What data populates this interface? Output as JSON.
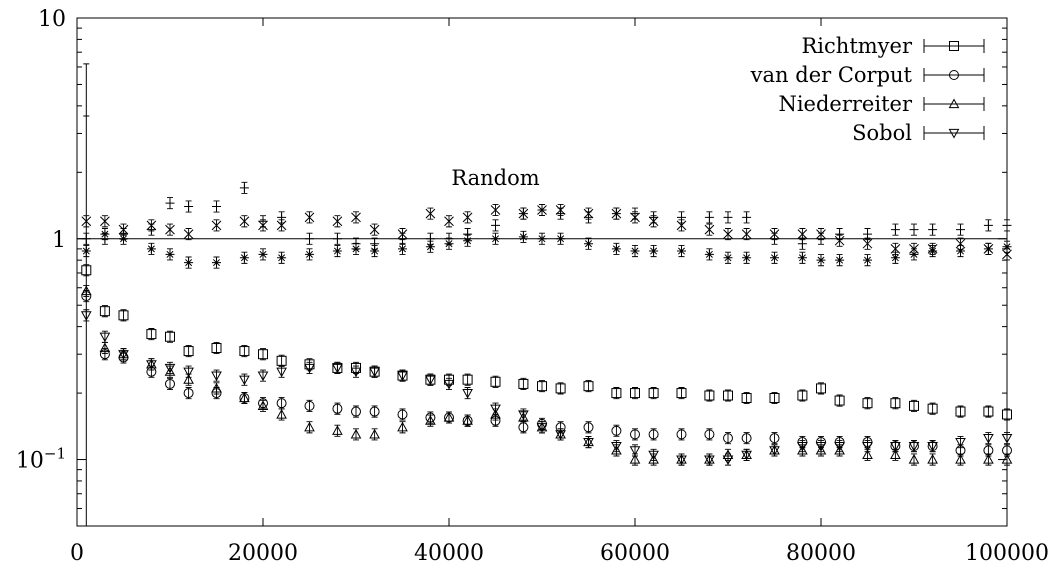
{
  "chart_data": {
    "type": "scatter",
    "xlabel": "",
    "ylabel": "",
    "xlim": [
      0,
      100000
    ],
    "ylim": [
      0.05,
      10
    ],
    "yscale": "log",
    "grid": false,
    "legend_position": "top-right",
    "x_ticks": [
      0,
      20000,
      40000,
      60000,
      80000,
      100000
    ],
    "x_tick_labels": [
      "0",
      "20000",
      "40000",
      "60000",
      "80000",
      "100000"
    ],
    "y_ticks": [
      0.1,
      1,
      10
    ],
    "y_tick_labels": [
      {
        "base": "10",
        "exp": "−1"
      },
      {
        "base": "1",
        "exp": ""
      },
      {
        "base": "10",
        "exp": ""
      }
    ],
    "reference_line": {
      "y": 1
    },
    "annotation": {
      "text": "Random",
      "x": 45000,
      "y": 1.75
    },
    "series": [
      {
        "name": "Richtmyer",
        "marker": "square",
        "in_legend": true,
        "error_bars": true,
        "x": [
          1000,
          3000,
          5000,
          8000,
          10000,
          12000,
          15000,
          18000,
          20000,
          22000,
          25000,
          28000,
          30000,
          32000,
          35000,
          38000,
          40000,
          42000,
          45000,
          48000,
          50000,
          52000,
          55000,
          58000,
          60000,
          62000,
          65000,
          68000,
          70000,
          72000,
          75000,
          78000,
          80000,
          82000,
          85000,
          88000,
          90000,
          92000,
          95000,
          98000,
          100000
        ],
        "y": [
          0.72,
          0.47,
          0.45,
          0.37,
          0.36,
          0.31,
          0.32,
          0.31,
          0.3,
          0.28,
          0.27,
          0.26,
          0.26,
          0.25,
          0.24,
          0.23,
          0.23,
          0.23,
          0.225,
          0.22,
          0.215,
          0.21,
          0.215,
          0.2,
          0.2,
          0.2,
          0.2,
          0.195,
          0.195,
          0.19,
          0.19,
          0.195,
          0.21,
          0.185,
          0.18,
          0.18,
          0.175,
          0.17,
          0.165,
          0.165,
          0.16
        ]
      },
      {
        "name": "van der Corput",
        "marker": "circle",
        "in_legend": true,
        "error_bars": true,
        "x": [
          1000,
          3000,
          5000,
          8000,
          10000,
          12000,
          15000,
          18000,
          20000,
          22000,
          25000,
          28000,
          30000,
          32000,
          35000,
          38000,
          40000,
          42000,
          45000,
          48000,
          50000,
          52000,
          55000,
          58000,
          60000,
          62000,
          65000,
          68000,
          70000,
          72000,
          75000,
          78000,
          80000,
          82000,
          85000,
          88000,
          90000,
          92000,
          95000,
          98000,
          100000
        ],
        "y": [
          0.55,
          0.3,
          0.29,
          0.25,
          0.22,
          0.2,
          0.2,
          0.19,
          0.18,
          0.18,
          0.175,
          0.17,
          0.165,
          0.165,
          0.16,
          0.155,
          0.155,
          0.15,
          0.15,
          0.14,
          0.145,
          0.14,
          0.14,
          0.135,
          0.13,
          0.13,
          0.13,
          0.13,
          0.125,
          0.125,
          0.125,
          0.12,
          0.12,
          0.12,
          0.12,
          0.115,
          0.115,
          0.115,
          0.11,
          0.11,
          0.11
        ]
      },
      {
        "name": "Niederreiter",
        "marker": "triangle-up",
        "in_legend": true,
        "error_bars": true,
        "x": [
          1000,
          3000,
          5000,
          8000,
          10000,
          12000,
          15000,
          18000,
          20000,
          22000,
          25000,
          28000,
          30000,
          32000,
          35000,
          38000,
          40000,
          42000,
          45000,
          48000,
          50000,
          52000,
          55000,
          58000,
          60000,
          62000,
          65000,
          68000,
          70000,
          72000,
          75000,
          78000,
          80000,
          82000,
          85000,
          88000,
          90000,
          92000,
          95000,
          98000,
          100000
        ],
        "y": [
          0.58,
          0.32,
          0.3,
          0.27,
          0.25,
          0.23,
          0.21,
          0.19,
          0.175,
          0.16,
          0.14,
          0.135,
          0.13,
          0.13,
          0.14,
          0.15,
          0.155,
          0.15,
          0.16,
          0.155,
          0.14,
          0.13,
          0.12,
          0.11,
          0.1,
          0.1,
          0.1,
          0.1,
          0.105,
          0.105,
          0.11,
          0.11,
          0.11,
          0.11,
          0.105,
          0.105,
          0.1,
          0.1,
          0.1,
          0.1,
          0.1
        ]
      },
      {
        "name": "Sobol",
        "marker": "triangle-down",
        "in_legend": true,
        "error_bars": true,
        "x": [
          1000,
          3000,
          5000,
          8000,
          10000,
          12000,
          15000,
          18000,
          20000,
          22000,
          25000,
          28000,
          30000,
          32000,
          35000,
          38000,
          40000,
          42000,
          45000,
          48000,
          50000,
          52000,
          55000,
          58000,
          60000,
          62000,
          65000,
          68000,
          70000,
          72000,
          75000,
          78000,
          80000,
          82000,
          85000,
          88000,
          90000,
          92000,
          95000,
          98000,
          100000
        ],
        "y": [
          0.45,
          0.36,
          0.3,
          0.27,
          0.26,
          0.25,
          0.24,
          0.23,
          0.24,
          0.25,
          0.26,
          0.26,
          0.25,
          0.25,
          0.24,
          0.23,
          0.22,
          0.2,
          0.17,
          0.16,
          0.14,
          0.13,
          0.12,
          0.115,
          0.11,
          0.105,
          0.1,
          0.1,
          0.1,
          0.105,
          0.11,
          0.115,
          0.115,
          0.115,
          0.115,
          0.115,
          0.115,
          0.115,
          0.12,
          0.125,
          0.125
        ]
      },
      {
        "name": "",
        "marker": "plus",
        "in_legend": false,
        "error_bars": true,
        "x": [
          1000,
          3000,
          5000,
          8000,
          10000,
          12000,
          15000,
          18000,
          20000,
          22000,
          25000,
          28000,
          30000,
          32000,
          35000,
          38000,
          40000,
          42000,
          45000,
          48000,
          50000,
          52000,
          55000,
          58000,
          60000,
          62000,
          65000,
          68000,
          70000,
          72000,
          75000,
          78000,
          80000,
          82000,
          85000,
          88000,
          90000,
          92000,
          95000,
          98000,
          100000
        ],
        "y": [
          1.0,
          1.0,
          1.05,
          1.1,
          1.45,
          1.4,
          1.4,
          1.7,
          1.2,
          1.25,
          1.0,
          1.0,
          0.95,
          0.95,
          1.0,
          1.0,
          1.0,
          1.05,
          1.15,
          1.3,
          1.35,
          1.3,
          1.25,
          1.3,
          1.3,
          1.25,
          1.25,
          1.25,
          1.25,
          1.25,
          1.0,
          0.95,
          1.0,
          1.05,
          1.05,
          1.1,
          1.1,
          1.1,
          1.1,
          1.15,
          1.15
        ]
      },
      {
        "name": "",
        "marker": "x-cross",
        "in_legend": false,
        "error_bars": true,
        "x": [
          1000,
          3000,
          5000,
          8000,
          10000,
          12000,
          15000,
          18000,
          20000,
          22000,
          25000,
          28000,
          30000,
          32000,
          35000,
          38000,
          40000,
          42000,
          45000,
          48000,
          50000,
          52000,
          55000,
          58000,
          60000,
          62000,
          65000,
          68000,
          70000,
          72000,
          75000,
          78000,
          80000,
          82000,
          85000,
          88000,
          90000,
          92000,
          95000,
          98000,
          100000
        ],
        "y": [
          1.2,
          1.2,
          1.1,
          1.15,
          1.1,
          1.05,
          1.15,
          1.2,
          1.15,
          1.15,
          1.25,
          1.2,
          1.25,
          1.1,
          1.05,
          1.3,
          1.2,
          1.25,
          1.35,
          1.3,
          1.35,
          1.35,
          1.3,
          1.3,
          1.25,
          1.2,
          1.15,
          1.1,
          1.05,
          1.05,
          1.05,
          1.05,
          1.05,
          0.98,
          0.95,
          0.9,
          0.9,
          0.9,
          0.95,
          0.9,
          0.85
        ]
      },
      {
        "name": "",
        "marker": "asterisk",
        "in_legend": false,
        "error_bars": true,
        "x": [
          1000,
          3000,
          5000,
          8000,
          10000,
          12000,
          15000,
          18000,
          20000,
          22000,
          25000,
          28000,
          30000,
          32000,
          35000,
          38000,
          40000,
          42000,
          45000,
          48000,
          50000,
          52000,
          55000,
          58000,
          60000,
          62000,
          65000,
          68000,
          70000,
          72000,
          75000,
          78000,
          80000,
          82000,
          85000,
          88000,
          90000,
          92000,
          95000,
          98000,
          100000
        ],
        "y": [
          0.88,
          1.05,
          1.0,
          0.9,
          0.85,
          0.78,
          0.78,
          0.82,
          0.85,
          0.82,
          0.85,
          0.88,
          0.9,
          0.88,
          0.9,
          0.92,
          0.95,
          0.98,
          1.0,
          1.02,
          1.0,
          1.0,
          0.95,
          0.9,
          0.88,
          0.88,
          0.88,
          0.85,
          0.82,
          0.82,
          0.82,
          0.82,
          0.8,
          0.8,
          0.8,
          0.82,
          0.85,
          0.88,
          0.88,
          0.9,
          0.92
        ]
      }
    ]
  }
}
